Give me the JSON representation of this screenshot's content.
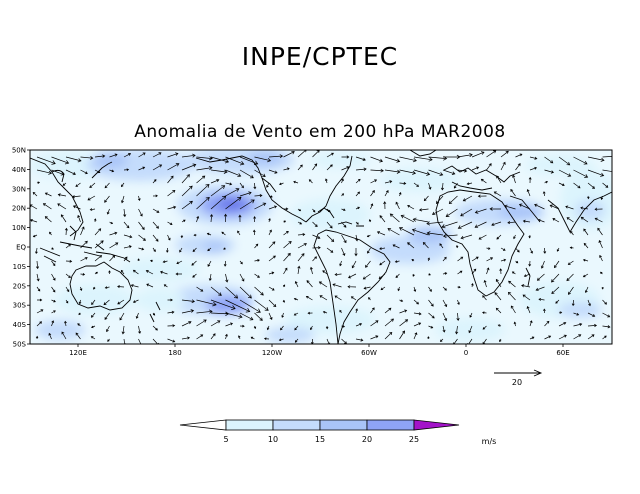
{
  "header": {
    "title": "INPE/CPTEC",
    "subtitle": "Anomalia de Vento em 200 hPa MAR2008"
  },
  "map": {
    "lat_labels": [
      "50N",
      "40N",
      "30N",
      "20N",
      "10N",
      "EQ",
      "10S",
      "20S",
      "30S",
      "40S",
      "50S"
    ],
    "lon_labels": [
      "120E",
      "180",
      "120W",
      "60W",
      "0",
      "60E"
    ],
    "shading_colors": [
      "#ffffff",
      "#dcf4fd",
      "#c4dcfc",
      "#a9c4f8",
      "#8ea3f6",
      "#6a79ea",
      "#a313c9"
    ]
  },
  "reference_vector": {
    "label": "20"
  },
  "colorbar": {
    "ticks": [
      "5",
      "10",
      "15",
      "20",
      "25"
    ],
    "unit": "m/s"
  }
}
